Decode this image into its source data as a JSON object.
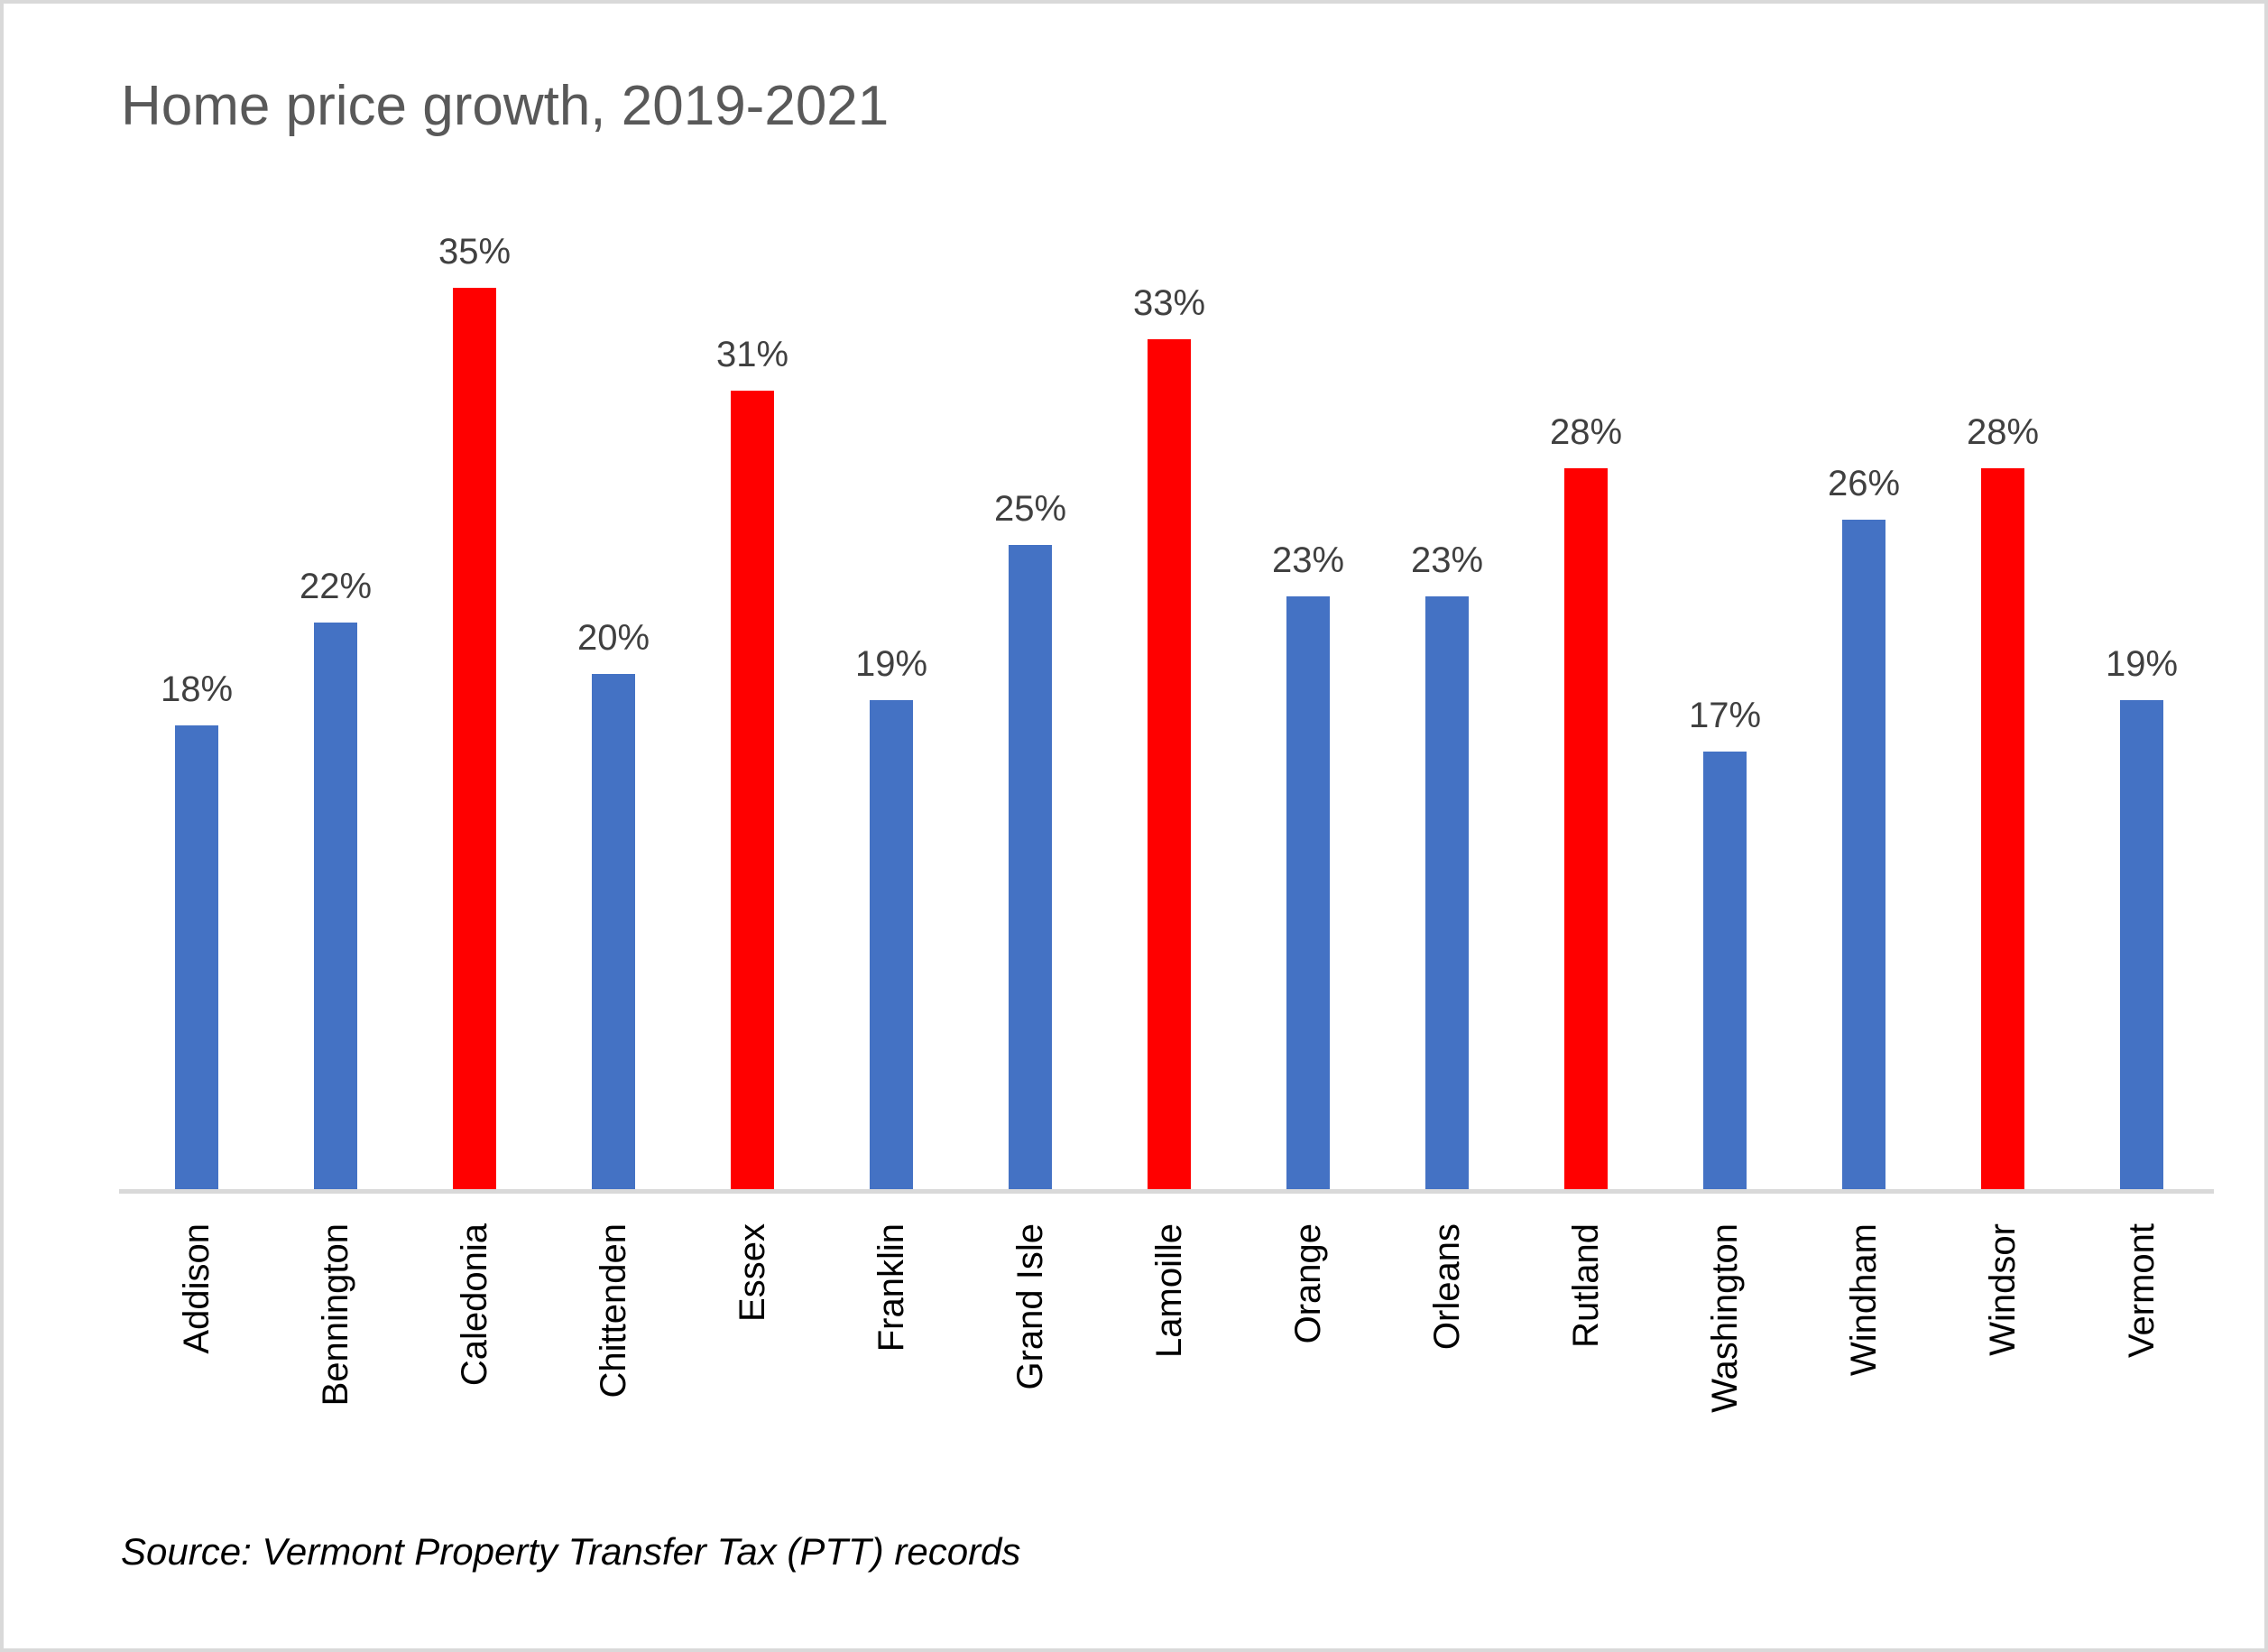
{
  "title": "Home price growth, 2019-2021",
  "source_note": "Source: Vermont Property Transfer Tax (PTT) records",
  "colors": {
    "bar_default": "#4472C4",
    "bar_highlight": "#FF0000",
    "axis_line": "#D9D9D9",
    "title_text": "#595959",
    "data_label_text": "#404040",
    "category_label_text": "#000000",
    "outer_border": "#D9D9D9",
    "background": "#FFFFFF"
  },
  "chart_data": {
    "type": "bar",
    "title": "Home price growth, 2019-2021",
    "xlabel": "",
    "ylabel": "",
    "ylim": [
      0,
      35
    ],
    "gridlines": false,
    "legend": "none",
    "data_labels_shown": true,
    "categories": [
      "Addison",
      "Bennington",
      "Caledonia",
      "Chittenden",
      "Essex",
      "Franklin",
      "Grand Isle",
      "Lamoille",
      "Orange",
      "Orleans",
      "Rutland",
      "Washington",
      "Windham",
      "Windsor",
      "Vermont"
    ],
    "values": [
      18,
      22,
      35,
      20,
      31,
      19,
      25,
      33,
      23,
      23,
      28,
      17,
      26,
      28,
      19
    ],
    "value_labels": [
      "18%",
      "22%",
      "35%",
      "20%",
      "31%",
      "19%",
      "25%",
      "33%",
      "23%",
      "23%",
      "28%",
      "17%",
      "26%",
      "28%",
      "19%"
    ],
    "highlighted_categories": [
      "Caledonia",
      "Essex",
      "Lamoille",
      "Rutland",
      "Windsor"
    ],
    "bar_colors": [
      "#4472C4",
      "#4472C4",
      "#FF0000",
      "#4472C4",
      "#FF0000",
      "#4472C4",
      "#4472C4",
      "#FF0000",
      "#4472C4",
      "#4472C4",
      "#FF0000",
      "#4472C4",
      "#4472C4",
      "#FF0000",
      "#4472C4"
    ],
    "source": "Source: Vermont Property Transfer Tax (PTT) records"
  }
}
